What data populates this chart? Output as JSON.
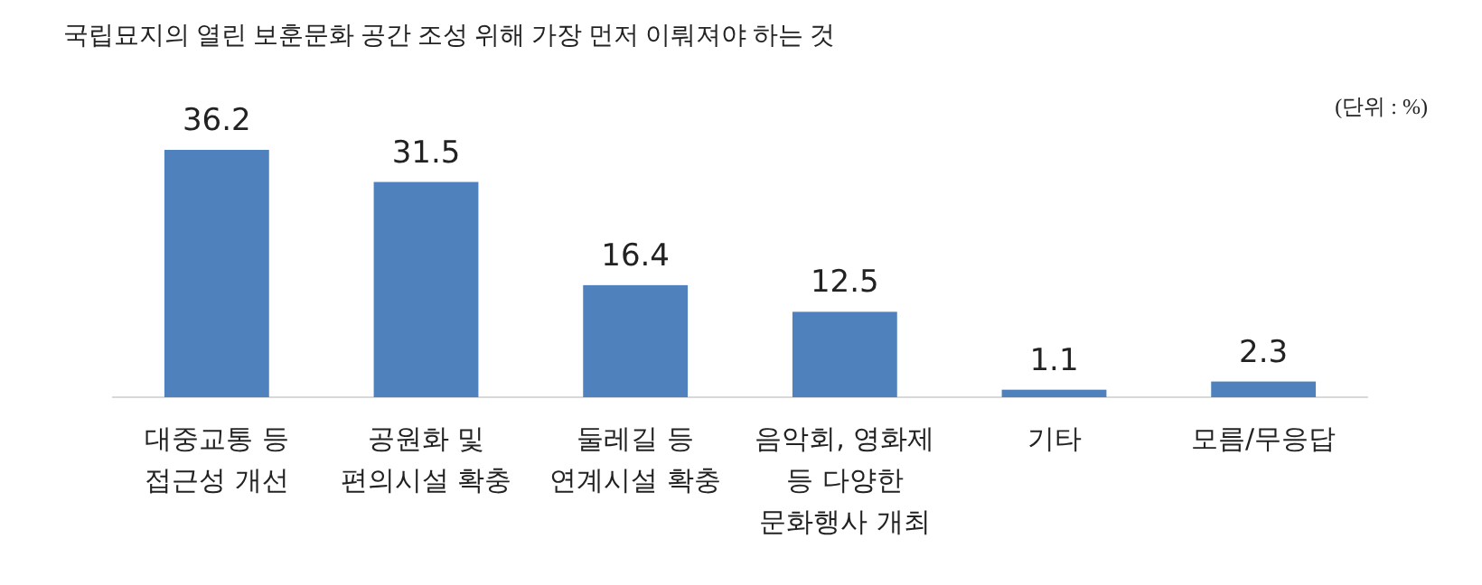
{
  "chart_data": {
    "type": "bar",
    "title": "국립묘지의 열린 보훈문화 공간 조성 위해 가장 먼저 이뤄져야 하는 것",
    "annotations": [
      "(단위 : %)"
    ],
    "categories": [
      "대중교통 등\n접근성 개선",
      "공원화 및\n편의시설 확충",
      "둘레길 등\n연계시설 확충",
      "음악회, 영화제\n등 다양한\n문화행사 개최",
      "기타",
      "모름/무응답"
    ],
    "values": [
      36.2,
      31.5,
      16.4,
      12.5,
      1.1,
      2.3
    ],
    "color": "#4f81bd",
    "data_labels": true
  }
}
